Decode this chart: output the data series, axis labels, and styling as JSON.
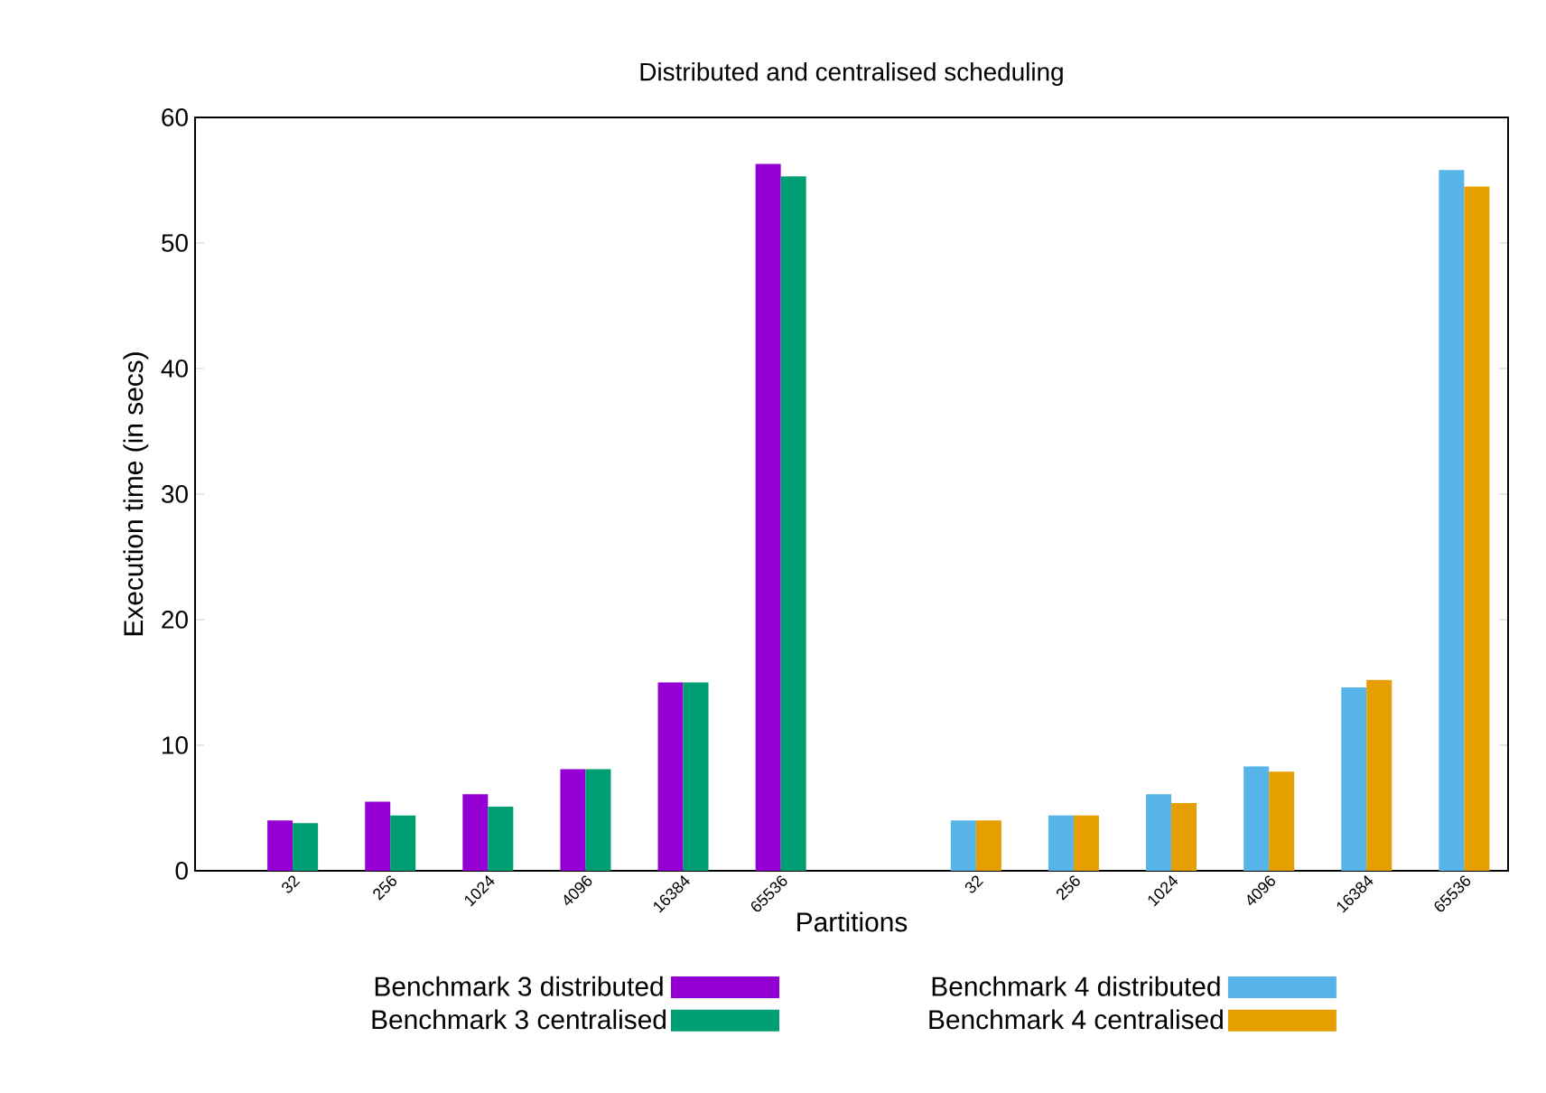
{
  "chart_data": {
    "type": "bar",
    "title": "Distributed and centralised scheduling",
    "xlabel": "Partitions",
    "ylabel": "Execution time (in secs)",
    "categories": [
      "32",
      "256",
      "1024",
      "4096",
      "16384",
      "65536",
      null,
      "32",
      "256",
      "1024",
      "4096",
      "16384",
      "65536"
    ],
    "series": [
      {
        "name": "Benchmark 3 distributed",
        "color": "#9400d3",
        "values": [
          4.0,
          5.5,
          6.1,
          8.1,
          15.0,
          56.3,
          null,
          null,
          null,
          null,
          null,
          null,
          null
        ]
      },
      {
        "name": "Benchmark 3 centralised",
        "color": "#009e73",
        "values": [
          3.8,
          4.4,
          5.1,
          8.1,
          15.0,
          55.3,
          null,
          null,
          null,
          null,
          null,
          null,
          null
        ]
      },
      {
        "name": "Benchmark 4 distributed",
        "color": "#56b4e9",
        "values": [
          null,
          null,
          null,
          null,
          null,
          null,
          null,
          4.0,
          4.4,
          6.1,
          8.3,
          14.6,
          55.8
        ]
      },
      {
        "name": "Benchmark 4 centralised",
        "color": "#e69f00",
        "values": [
          null,
          null,
          null,
          null,
          null,
          null,
          null,
          4.0,
          4.4,
          5.4,
          7.9,
          15.2,
          54.5
        ]
      }
    ],
    "ylim": [
      0,
      60
    ],
    "yticks": [
      0,
      10,
      20,
      30,
      40,
      50,
      60
    ],
    "grid": false,
    "legend": "bottom"
  }
}
